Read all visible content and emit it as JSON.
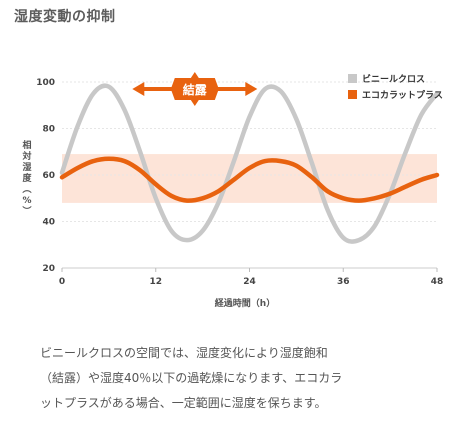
{
  "heading": "湿度変動の抑制",
  "chart_data": {
    "type": "line",
    "xlabel": "経過時間（h）",
    "ylabel": "相対湿度（%）",
    "xlim": [
      0,
      48
    ],
    "ylim": [
      20,
      100
    ],
    "x_ticks": [
      0,
      12,
      24,
      36,
      48
    ],
    "y_ticks": [
      20,
      40,
      60,
      80,
      100
    ],
    "band": {
      "from": 48,
      "to": 69,
      "color": "#fde4d8"
    },
    "annotation": {
      "text": "結露",
      "x_from": 9,
      "x_to": 25,
      "y": 97
    },
    "legend_position": "top-right",
    "series": [
      {
        "name": "ビニールクロス",
        "color": "#c8c8c8",
        "x": [
          0,
          2,
          4,
          6,
          8,
          10,
          12,
          14,
          16,
          18,
          20,
          22,
          24,
          26,
          28,
          30,
          32,
          34,
          36,
          38,
          40,
          42,
          44,
          46,
          48
        ],
        "y": [
          61,
          81,
          95,
          98,
          88,
          70,
          50,
          36,
          32,
          36,
          48,
          66,
          85,
          97,
          96,
          84,
          65,
          45,
          33,
          32,
          38,
          52,
          70,
          86,
          95
        ]
      },
      {
        "name": "エコカラットプラス",
        "color": "#e8620f",
        "x": [
          0,
          2,
          4,
          6,
          8,
          10,
          12,
          14,
          16,
          18,
          20,
          22,
          24,
          26,
          28,
          30,
          32,
          34,
          36,
          38,
          40,
          42,
          44,
          46,
          48
        ],
        "y": [
          59,
          63,
          66,
          67,
          66,
          62,
          56,
          51,
          49,
          50,
          53,
          58,
          63,
          66,
          66,
          64,
          59,
          53,
          50,
          49,
          50,
          52,
          55,
          58,
          60
        ]
      }
    ]
  },
  "description": {
    "lines": [
      "ビニールクロスの空間では、湿度変化により湿度飽和",
      "（結露）や湿度40％以下の過乾燥になります、エコカラ",
      "ットプラスがある場合、一定範囲に湿度を保ちます。"
    ]
  }
}
